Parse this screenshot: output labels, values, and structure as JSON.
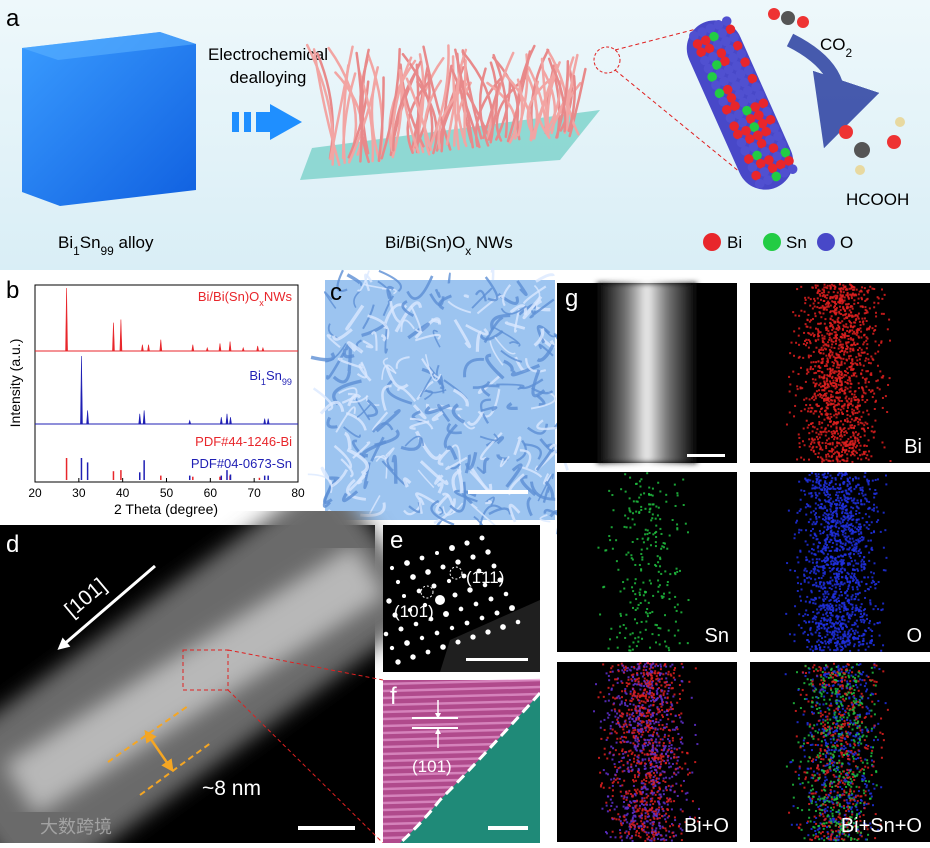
{
  "panel_a": {
    "label": "a",
    "process": [
      "Electrochemical",
      "dealloying"
    ],
    "alloy_label": [
      "Bi",
      "1",
      "Sn",
      "99",
      "  alloy"
    ],
    "nw_label": [
      "Bi/Bi(Sn)O",
      "x",
      " NWs"
    ],
    "reactant": [
      "CO",
      "2"
    ],
    "product": "HCOOH",
    "legend": [
      "Bi",
      "Sn",
      "O"
    ]
  },
  "chart_data": {
    "type": "line",
    "panel_label": "b",
    "xlabel": "2 Theta (degree)",
    "ylabel": "Intensity (a.u.)",
    "xlim": [
      20,
      80
    ],
    "xticks": [
      20,
      30,
      40,
      50,
      60,
      70,
      80
    ],
    "series": [
      {
        "name": [
          "Bi/Bi(Sn)O",
          "x",
          "NWs"
        ],
        "color": "#e8262b",
        "x": [
          27.2,
          37.9,
          39.6,
          44.5,
          45.9,
          48.7,
          56.0,
          59.3,
          62.2,
          64.5,
          67.5,
          70.8,
          72.0
        ],
        "values": [
          100,
          45,
          50,
          10,
          10,
          18,
          10,
          5,
          12,
          15,
          5,
          8,
          5
        ]
      },
      {
        "name": [
          "Bi",
          "1",
          "Sn",
          "99"
        ],
        "color": "#1f1fb4",
        "x": [
          30.6,
          32.0,
          43.9,
          44.9,
          55.3,
          62.5,
          63.8,
          64.6,
          72.4,
          73.2
        ],
        "values": [
          100,
          20,
          15,
          20,
          5,
          10,
          15,
          10,
          8,
          8
        ]
      },
      {
        "name": "PDF#44-1246-Bi",
        "color": "#e8262b",
        "x": [
          27.2,
          37.9,
          39.6,
          48.7,
          56.0,
          62.2,
          64.5,
          71.2
        ],
        "values": [
          100,
          40,
          45,
          20,
          15,
          15,
          20,
          10
        ]
      },
      {
        "name": "PDF#04-0673-Sn",
        "color": "#1f1fb4",
        "x": [
          30.6,
          32.0,
          43.9,
          44.9,
          55.3,
          62.5,
          63.8,
          64.6,
          72.4,
          73.2
        ],
        "values": [
          100,
          80,
          35,
          90,
          20,
          20,
          45,
          25,
          20,
          20
        ]
      }
    ]
  },
  "panel_c": {
    "label": "c"
  },
  "panel_d": {
    "label": "d",
    "direction": "[101]",
    "width": "~8 nm"
  },
  "panel_e": {
    "label": "e",
    "spots": [
      "(1̄11)",
      "(101)"
    ]
  },
  "panel_f": {
    "label": "f",
    "plane": "(101)"
  },
  "panel_g": {
    "label": "g",
    "maps": [
      "Bi",
      "Sn",
      "O",
      "Bi+O",
      "Bi+Sn+O"
    ]
  },
  "watermark": "大数跨境"
}
